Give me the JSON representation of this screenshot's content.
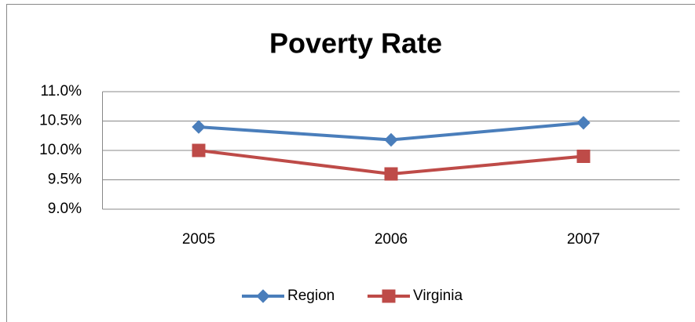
{
  "chart_data": {
    "type": "line",
    "title": "Poverty Rate",
    "categories": [
      "2005",
      "2006",
      "2007"
    ],
    "series": [
      {
        "name": "Region",
        "color": "#4a7ebb",
        "marker": "diamond",
        "values": [
          10.4,
          10.18,
          10.47
        ]
      },
      {
        "name": "Virginia",
        "color": "#be4b48",
        "marker": "square",
        "values": [
          10.0,
          9.6,
          9.9
        ]
      }
    ],
    "ylim": [
      9,
      11
    ],
    "yticks": [
      {
        "value": 9,
        "label": "9.0%"
      },
      {
        "value": 9.5,
        "label": "9.5%"
      },
      {
        "value": 10,
        "label": "10.0%"
      },
      {
        "value": 10.5,
        "label": "10.5%"
      },
      {
        "value": 11,
        "label": "11.0%"
      }
    ],
    "grid": true,
    "legend": "bottom"
  }
}
